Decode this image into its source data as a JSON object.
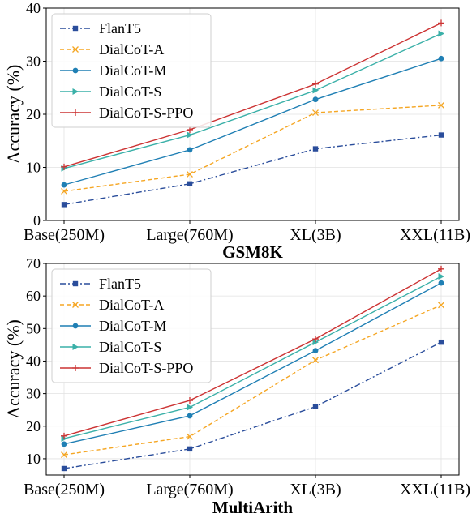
{
  "chart_data": [
    {
      "type": "line",
      "title": "GSM8K",
      "ylabel": "Accuracy (%)",
      "categories": [
        "Base(250M)",
        "Large(760M)",
        "XL(3B)",
        "XXL(11B)"
      ],
      "ylim": [
        0,
        40
      ],
      "yticks": [
        0,
        10,
        20,
        30,
        40
      ],
      "grid": true,
      "legend": "top-left",
      "series": [
        {
          "name": "FlanT5",
          "values": [
            3.0,
            6.9,
            13.5,
            16.1
          ],
          "color": "#2a4d9b",
          "marker": "square",
          "dash": "dashdot"
        },
        {
          "name": "DialCoT-A",
          "values": [
            5.5,
            8.7,
            20.3,
            21.7
          ],
          "color": "#f5a623",
          "marker": "x",
          "dash": "dashed"
        },
        {
          "name": "DialCoT-M",
          "values": [
            6.7,
            13.3,
            22.8,
            30.5
          ],
          "color": "#1f7fb4",
          "marker": "circle",
          "dash": "solid"
        },
        {
          "name": "DialCoT-S",
          "values": [
            9.8,
            16.1,
            24.5,
            35.2
          ],
          "color": "#3ab0a8",
          "marker": "triangle-right",
          "dash": "solid"
        },
        {
          "name": "DialCoT-S-PPO",
          "values": [
            10.1,
            17.1,
            25.7,
            37.2
          ],
          "color": "#cc3333",
          "marker": "plus",
          "dash": "solid"
        }
      ]
    },
    {
      "type": "line",
      "title": "MultiArith",
      "ylabel": "Accuracy (%)",
      "categories": [
        "Base(250M)",
        "Large(760M)",
        "XL(3B)",
        "XXL(11B)"
      ],
      "ylim": [
        5,
        70
      ],
      "yticks": [
        10,
        20,
        30,
        40,
        50,
        60,
        70
      ],
      "grid": true,
      "legend": "top-left",
      "series": [
        {
          "name": "FlanT5",
          "values": [
            7.0,
            13.0,
            26.0,
            45.8
          ],
          "color": "#2a4d9b",
          "marker": "square",
          "dash": "dashdot"
        },
        {
          "name": "DialCoT-A",
          "values": [
            11.2,
            16.8,
            40.3,
            57.2
          ],
          "color": "#f5a623",
          "marker": "x",
          "dash": "dashed"
        },
        {
          "name": "DialCoT-M",
          "values": [
            14.5,
            23.2,
            43.2,
            64.0
          ],
          "color": "#1f7fb4",
          "marker": "circle",
          "dash": "solid"
        },
        {
          "name": "DialCoT-S",
          "values": [
            16.2,
            25.8,
            45.8,
            66.0
          ],
          "color": "#3ab0a8",
          "marker": "triangle-right",
          "dash": "solid"
        },
        {
          "name": "DialCoT-S-PPO",
          "values": [
            17.0,
            27.9,
            46.8,
            68.3
          ],
          "color": "#cc3333",
          "marker": "plus",
          "dash": "solid"
        }
      ]
    }
  ]
}
